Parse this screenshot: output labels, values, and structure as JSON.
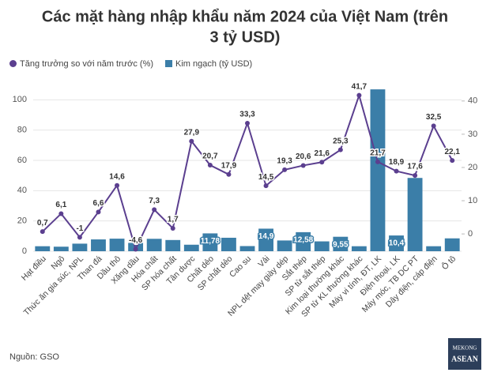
{
  "chart_data": {
    "type": "bar_line",
    "title": [
      "Các mặt hàng nhập khẩu năm 2024 của Việt Nam (trên",
      "3 tỷ USD)"
    ],
    "categories": [
      "Hạt điều",
      "Ngô",
      "Thức ăn gia súc, NPL",
      "Than đá",
      "Dầu thô",
      "Xăng dầu",
      "Hóa chất",
      "SP hóa chất",
      "Tân dược",
      "Chất dẻo",
      "SP chất dẻo",
      "Cao su",
      "Vải",
      "NPL dệt may giày dép",
      "Sắt thép",
      "SP từ sắt thép",
      "Kim loại thường khác",
      "SP từ KL thường khác",
      "Máy vi tính, ĐT, LK",
      "Điện thoại, LK",
      "Máy móc, TB DC PT",
      "Dây điện, cáp điện",
      "Ô tô"
    ],
    "series": [
      {
        "name": "Tăng trưởng so với năm trước (%)",
        "color": "#5b3f8f",
        "kind": "line",
        "axis": "y2",
        "values": [
          0.7,
          6.1,
          -1,
          6.6,
          14.6,
          -4.6,
          7.3,
          1.7,
          27.9,
          20.7,
          17.9,
          33.3,
          14.5,
          19.3,
          20.6,
          21.6,
          25.3,
          41.7,
          21.7,
          18.9,
          17.6,
          32.5,
          22.1
        ],
        "value_labels": [
          "0,7",
          "6,1",
          "-1",
          "6,6",
          "14,6",
          "-4,6",
          "7,3",
          "1,7",
          "27,9",
          "20,7",
          "17,9",
          "33,3",
          "14,5",
          "19,3",
          "20,6",
          "21,6",
          "25,3",
          "41,7",
          "21,7",
          "18,9",
          "17,6",
          "32,5",
          "22,1"
        ]
      },
      {
        "name": "Kim ngạch (tỷ USD)",
        "color": "#3b7ea8",
        "kind": "bar",
        "values": [
          3.3,
          3,
          5,
          7.8,
          8.3,
          5.5,
          8.2,
          7.4,
          4.3,
          11.78,
          8.9,
          3.4,
          14.9,
          7.1,
          12.58,
          6.5,
          9.55,
          3.3,
          106.9,
          10.4,
          48.4,
          3.3,
          8.5
        ],
        "value_labels": [
          null,
          null,
          null,
          null,
          null,
          null,
          null,
          null,
          null,
          "11,78",
          null,
          null,
          "14,9",
          null,
          "12,58",
          null,
          "9,55",
          null,
          null,
          "10,4",
          null,
          null,
          null
        ]
      }
    ],
    "ylim": [
      0,
      108
    ],
    "yticks": [
      0,
      20,
      40,
      60,
      80,
      100
    ],
    "y2lim": [
      -5.2,
      44
    ],
    "y2ticks": [
      0,
      10,
      20,
      30,
      40
    ],
    "legend": "top-left",
    "source": "Nguồn: GSO",
    "logo": [
      "MEKONG",
      "ASEAN"
    ]
  }
}
